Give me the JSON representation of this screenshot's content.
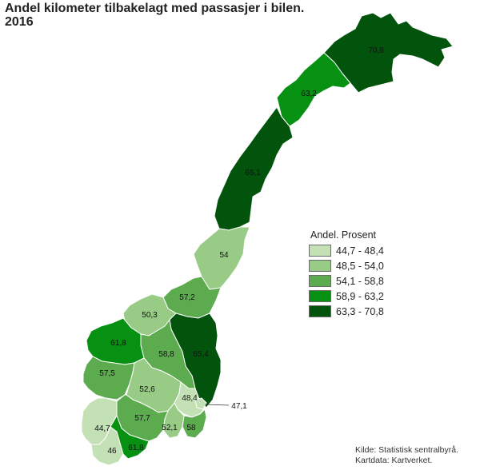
{
  "title": {
    "line1": "Andel kilometer tilbakelagt med passasjer i bilen.",
    "line2": "2016"
  },
  "legend": {
    "title": "Andel. Prosent",
    "classes": [
      {
        "label": "44,7 - 48,4",
        "color": "#c3e1b5"
      },
      {
        "label": "48,5 - 54,0",
        "color": "#98cc86"
      },
      {
        "label": "54,1 - 58,8",
        "color": "#5cab4f"
      },
      {
        "label": "58,9 - 63,2",
        "color": "#079112"
      },
      {
        "label": "63,3 - 70,8",
        "color": "#02530c"
      }
    ]
  },
  "regions": [
    {
      "id": "finnmark",
      "value": "70,8",
      "class": 4
    },
    {
      "id": "troms",
      "value": "63,2",
      "class": 3
    },
    {
      "id": "nordland",
      "value": "65,1",
      "class": 4
    },
    {
      "id": "nord-trondelag",
      "value": "54",
      "class": 1
    },
    {
      "id": "sor-trondelag",
      "value": "57,2",
      "class": 2
    },
    {
      "id": "more-og-romsdal",
      "value": "50,3",
      "class": 1
    },
    {
      "id": "sogn-og-fjordane",
      "value": "61,8",
      "class": 3
    },
    {
      "id": "oppland",
      "value": "58,8",
      "class": 2
    },
    {
      "id": "hedmark",
      "value": "65,4",
      "class": 4
    },
    {
      "id": "hordaland",
      "value": "57,5",
      "class": 2
    },
    {
      "id": "buskerud",
      "value": "52,6",
      "class": 1
    },
    {
      "id": "akershus",
      "value": "48,4",
      "class": 0
    },
    {
      "id": "oslo",
      "value": "47,1",
      "class": 0
    },
    {
      "id": "telemark",
      "value": "57,7",
      "class": 2
    },
    {
      "id": "vestfold",
      "value": "52,1",
      "class": 1
    },
    {
      "id": "ostfold",
      "value": "58",
      "class": 2
    },
    {
      "id": "rogaland",
      "value": "44,7",
      "class": 0
    },
    {
      "id": "vest-agder",
      "value": "46",
      "class": 0
    },
    {
      "id": "aust-agder",
      "value": "61,8",
      "class": 3
    }
  ],
  "source": {
    "line1": "Kilde: Statistisk sentralbyrå.",
    "line2": "Kartdata: Kartverket."
  }
}
